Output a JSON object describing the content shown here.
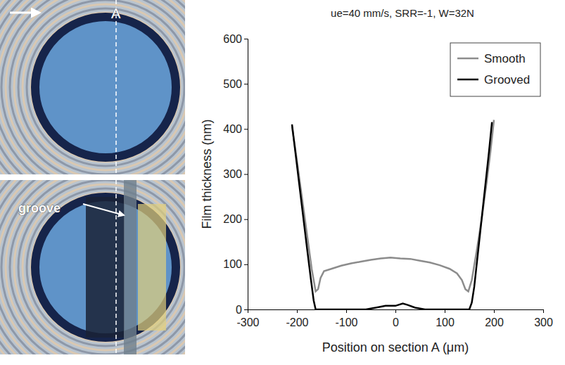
{
  "chart_data": {
    "type": "line",
    "title": "ue=40 mm/s, SRR=-1, W=32N",
    "x_label": "Position on section A (μm)",
    "y_label": "Film thickness (nm)",
    "xlim": [
      -300,
      300
    ],
    "xticks": [
      -300,
      -200,
      -100,
      0,
      100,
      200,
      300
    ],
    "ylim": [
      0,
      600
    ],
    "yticks": [
      0,
      100,
      200,
      300,
      400,
      500,
      600
    ],
    "grid": false,
    "legend": "upper right",
    "series": [
      {
        "name": "Smooth",
        "color": "#8c8c8c",
        "x": [
          -210,
          -200,
          -190,
          -180,
          -170,
          -162,
          -157,
          -152,
          -145,
          -130,
          -110,
          -90,
          -70,
          -50,
          -30,
          -10,
          10,
          30,
          50,
          70,
          90,
          110,
          125,
          135,
          142,
          148,
          155,
          165,
          175,
          185,
          193,
          200
        ],
        "values": [
          405,
          330,
          250,
          170,
          90,
          40,
          45,
          70,
          85,
          90,
          97,
          102,
          106,
          110,
          113,
          115,
          113,
          112,
          108,
          104,
          98,
          90,
          80,
          65,
          45,
          40,
          65,
          130,
          200,
          280,
          350,
          420
        ]
      },
      {
        "name": "Grooved",
        "color": "#000000",
        "x": [
          -210,
          -200,
          -190,
          -180,
          -172,
          -166,
          -162,
          -150,
          -100,
          -60,
          -40,
          -20,
          0,
          15,
          25,
          40,
          60,
          100,
          140,
          150,
          155,
          160,
          168,
          176,
          184,
          190,
          196
        ],
        "values": [
          410,
          320,
          230,
          140,
          70,
          20,
          0,
          0,
          0,
          0,
          4,
          8,
          8,
          13,
          10,
          4,
          0,
          0,
          0,
          0,
          15,
          50,
          130,
          210,
          290,
          350,
          415
        ]
      }
    ]
  },
  "panels": [
    {
      "label": "A"
    },
    {
      "label": "groove"
    }
  ]
}
